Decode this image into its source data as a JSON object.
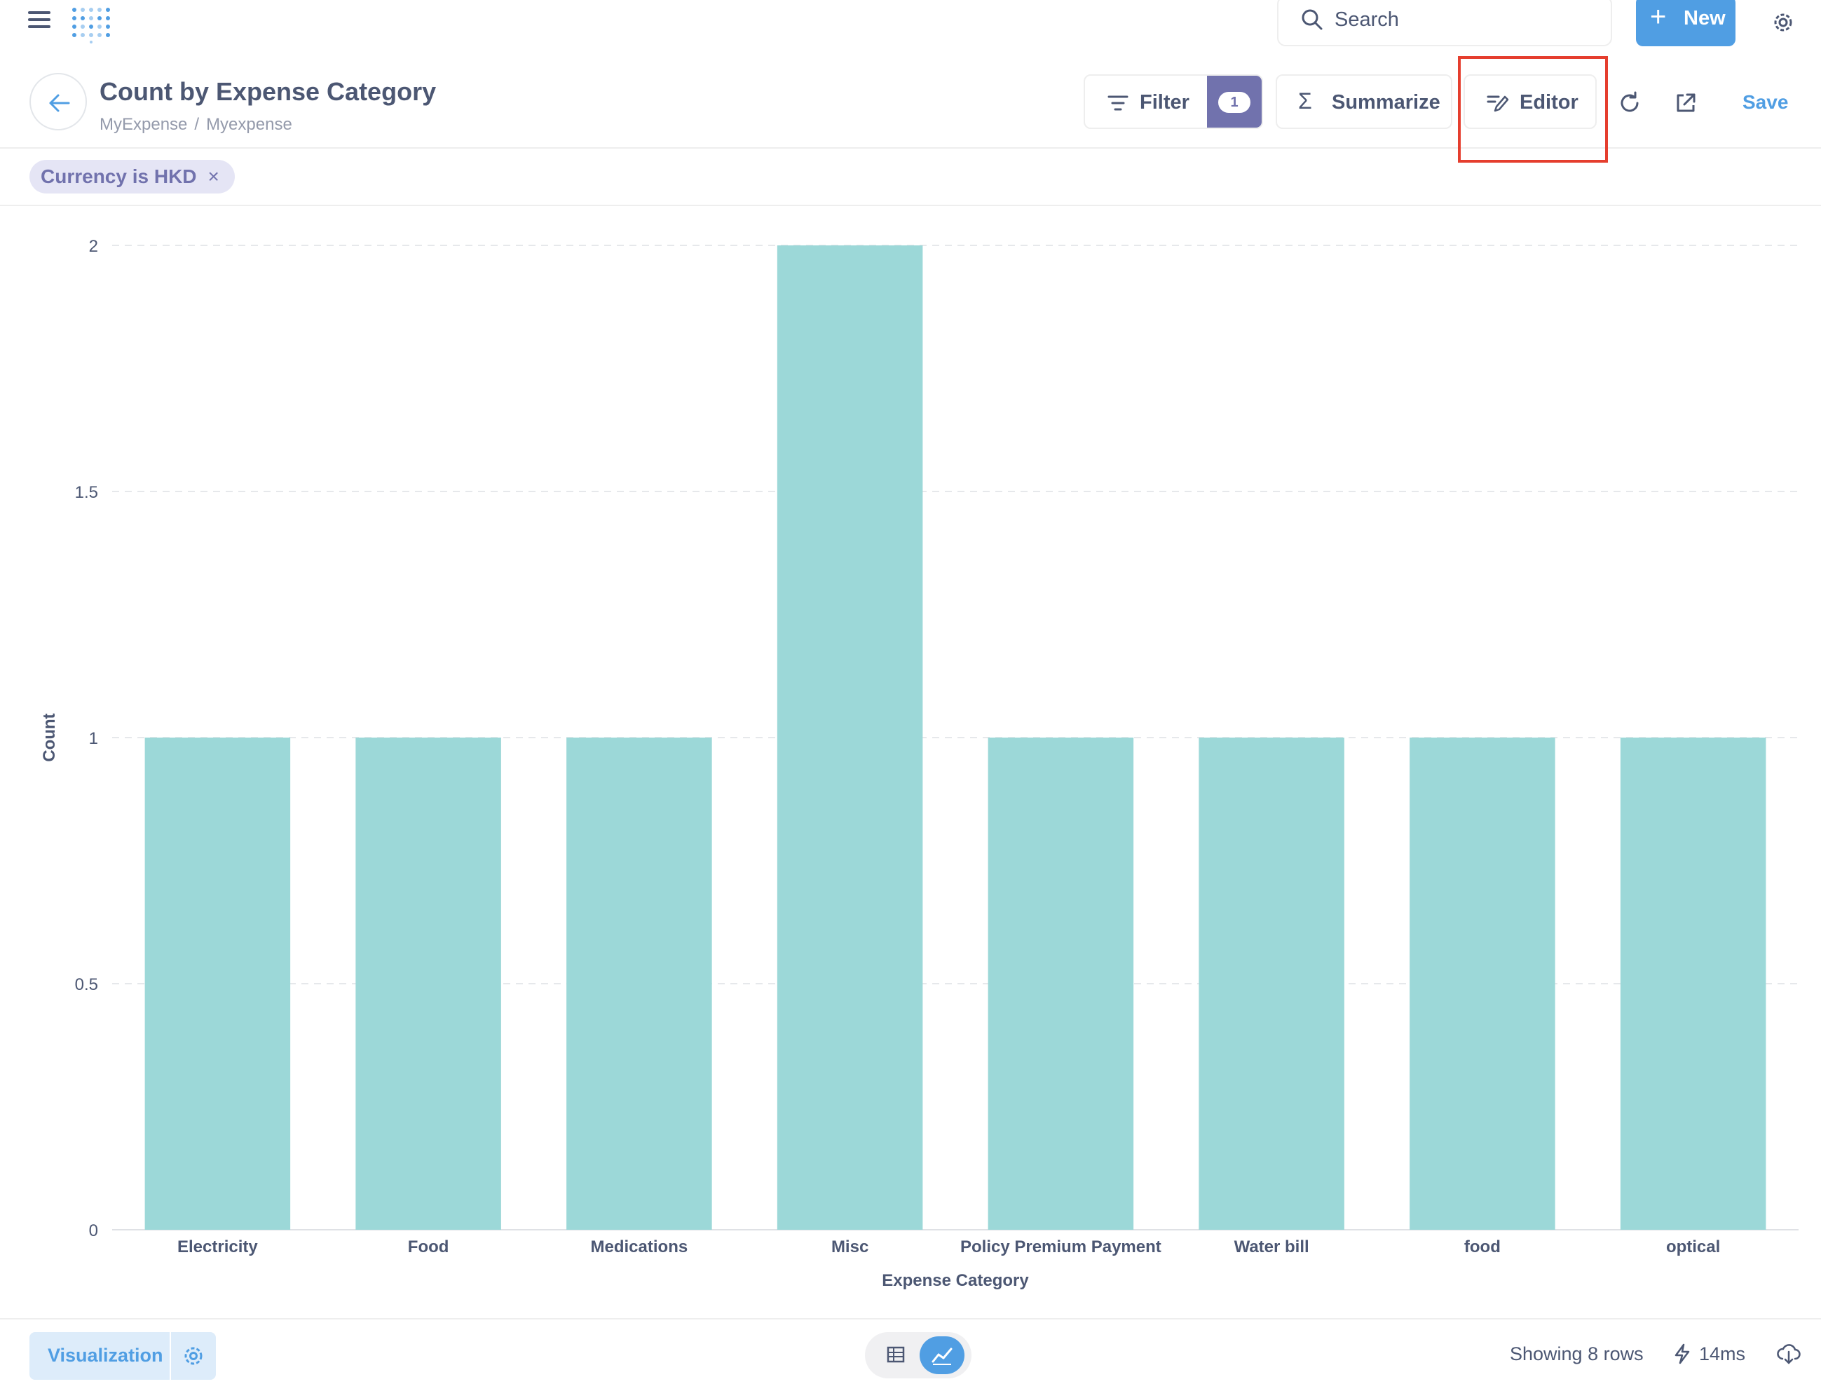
{
  "nav": {
    "search_label": "Search",
    "new_label": "New"
  },
  "header": {
    "title": "Count by Expense Category",
    "breadcrumb": [
      "MyExpense",
      "Myexpense"
    ],
    "filter_label": "Filter",
    "filter_count": "1",
    "summarize_label": "Summarize",
    "editor_label": "Editor",
    "save_label": "Save"
  },
  "filters": [
    {
      "label": "Currency is HKD",
      "remove": "×"
    }
  ],
  "chart_data": {
    "type": "bar",
    "categories": [
      "Electricity",
      "Food",
      "Medications",
      "Misc",
      "Policy Premium Payment",
      "Water bill",
      "food",
      "optical"
    ],
    "values": [
      1,
      1,
      1,
      2,
      1,
      1,
      1,
      1
    ],
    "xlabel": "Expense Category",
    "ylabel": "Count",
    "ylim": [
      0,
      2
    ],
    "yticks": [
      "0",
      "0.5",
      "1",
      "1.5",
      "2"
    ],
    "grid": true,
    "bar_color": "#9cd8d8"
  },
  "footer": {
    "visualization_label": "Visualization",
    "rows_text": "Showing 8 rows",
    "time_text": "14ms"
  },
  "colors": {
    "brand": "#509ee3",
    "filter_accent": "#7172ad",
    "highlight": "#e53e2e"
  }
}
